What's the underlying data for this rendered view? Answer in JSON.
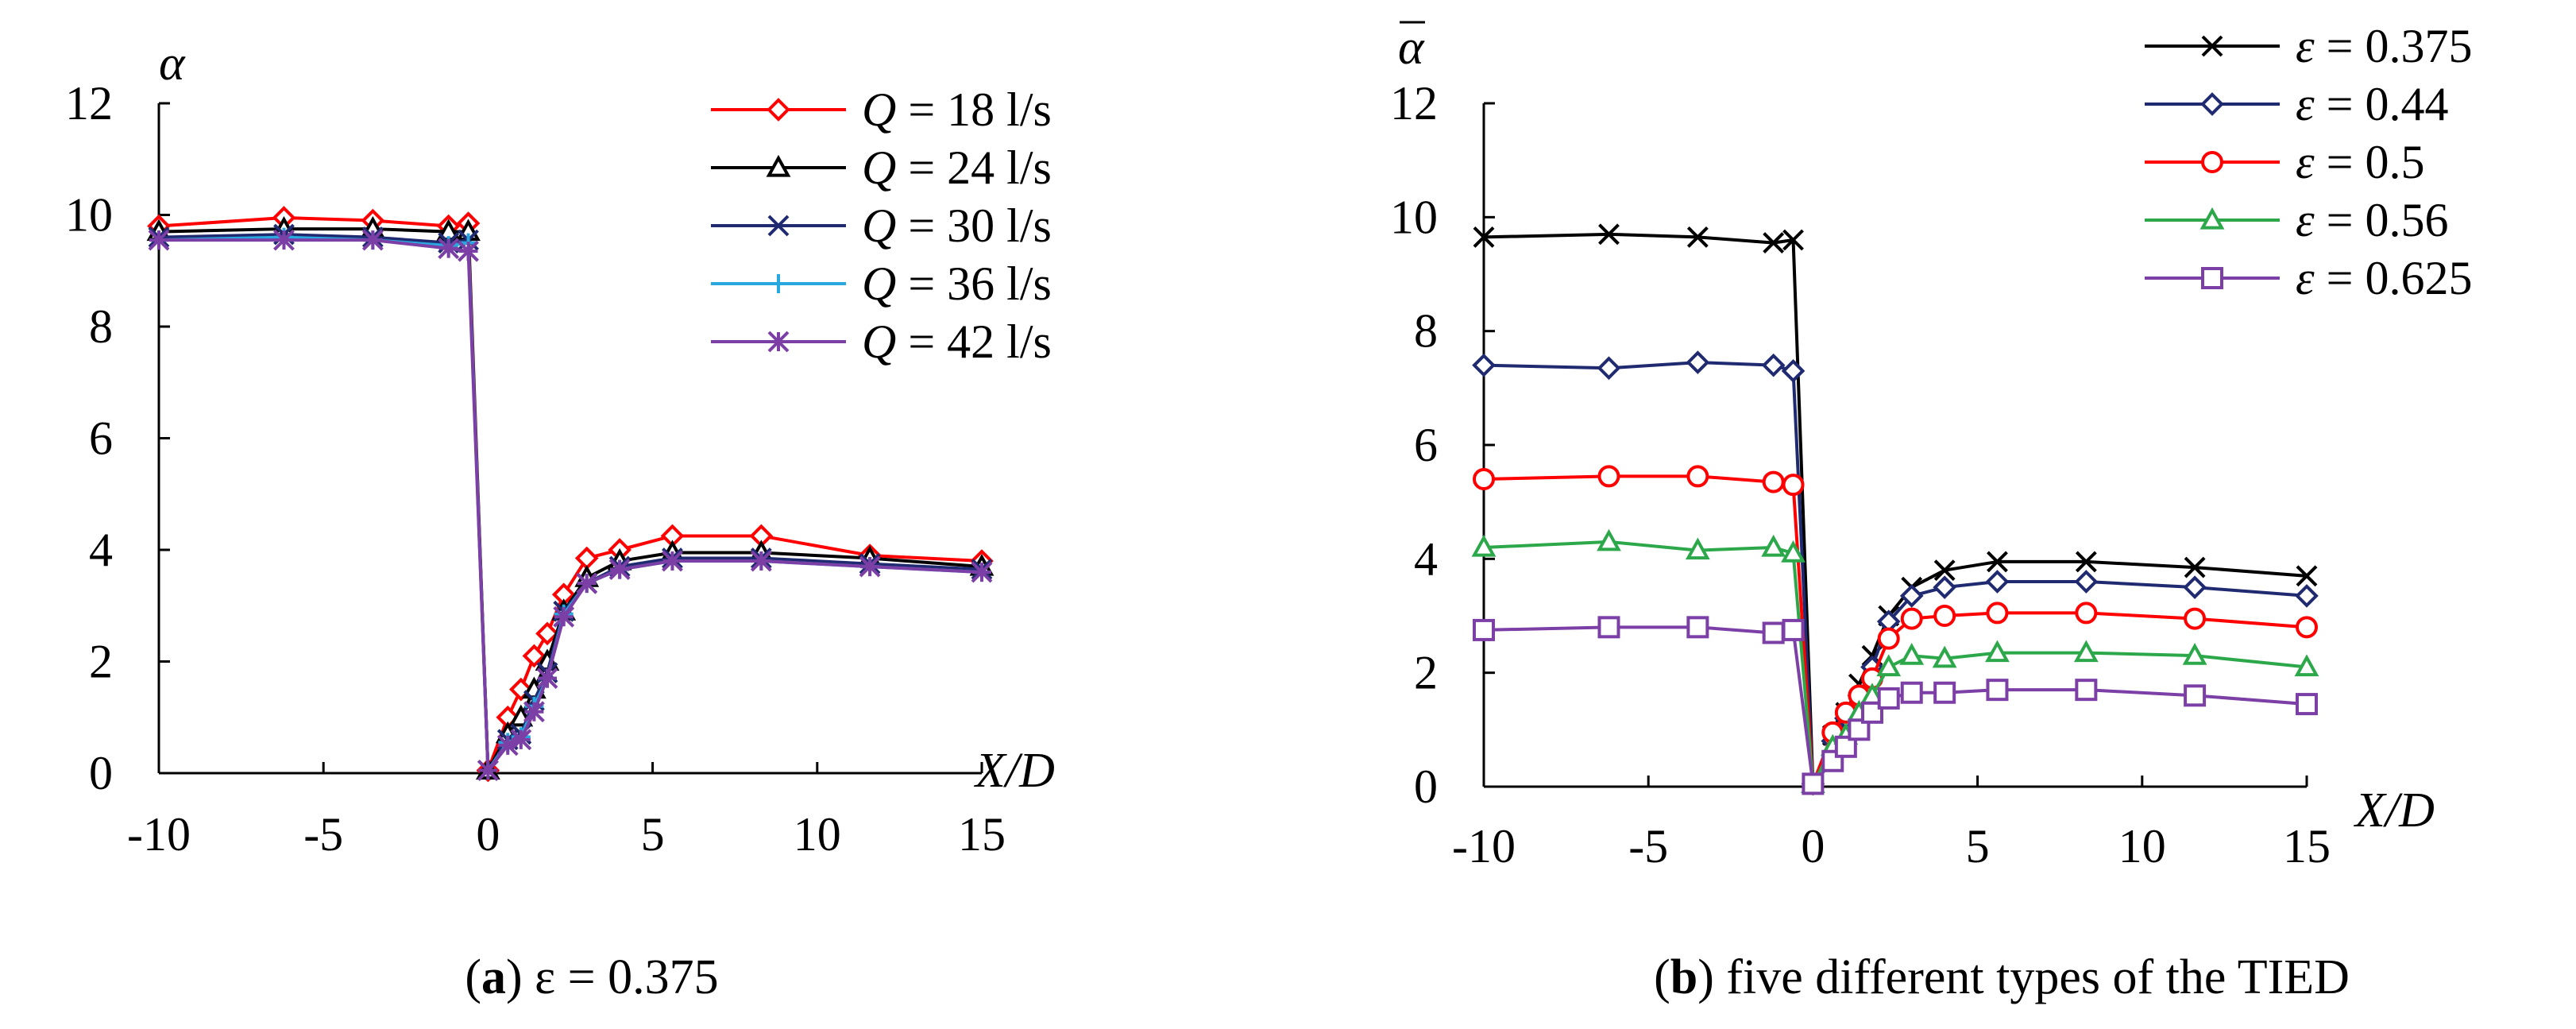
{
  "chart_data": [
    {
      "id": "a",
      "type": "line",
      "ylabel": "α",
      "xlabel": "X/D",
      "xlim": [
        -10,
        15
      ],
      "ylim": [
        0,
        12
      ],
      "xticks": [
        -10,
        -5,
        0,
        5,
        10,
        15
      ],
      "yticks": [
        0,
        2,
        4,
        6,
        8,
        10,
        12
      ],
      "caption": {
        "letter": "a",
        "text": " ε = 0.375"
      },
      "series": [
        {
          "name": "Q = 18 l/s",
          "prefix": "Q",
          "value_text": " = 18 l/s",
          "color": "#ff0000",
          "marker": "diamond",
          "x": [
            -10,
            -6.2,
            -3.5,
            -1.2,
            -0.6,
            0,
            0.6,
            1.0,
            1.4,
            1.8,
            2.3,
            3.0,
            4.0,
            5.6,
            8.3,
            11.6,
            15
          ],
          "y": [
            9.8,
            9.95,
            9.9,
            9.8,
            9.85,
            0.05,
            1.0,
            1.5,
            2.1,
            2.5,
            3.2,
            3.85,
            4.0,
            4.25,
            4.25,
            3.9,
            3.8
          ]
        },
        {
          "name": "Q = 24 l/s",
          "prefix": "Q",
          "value_text": " = 24 l/s",
          "color": "#000000",
          "marker": "triangle",
          "x": [
            -10,
            -6.2,
            -3.5,
            -1.2,
            -0.6,
            0,
            0.6,
            1.0,
            1.4,
            1.8,
            2.3,
            3.0,
            4.0,
            5.6,
            8.3,
            11.6,
            15
          ],
          "y": [
            9.7,
            9.75,
            9.75,
            9.7,
            9.7,
            0.05,
            0.7,
            1.0,
            1.5,
            2.0,
            2.9,
            3.5,
            3.8,
            3.95,
            3.95,
            3.85,
            3.7
          ]
        },
        {
          "name": "Q = 30 l/s",
          "prefix": "Q",
          "value_text": " = 30 l/s",
          "color": "#1f2a70",
          "marker": "x",
          "x": [
            -10,
            -6.2,
            -3.5,
            -1.2,
            -0.6,
            0,
            0.6,
            1.0,
            1.4,
            1.8,
            2.3,
            3.0,
            4.0,
            5.6,
            8.3,
            11.6,
            15
          ],
          "y": [
            9.6,
            9.65,
            9.6,
            9.5,
            9.55,
            0.05,
            0.6,
            0.7,
            1.3,
            1.8,
            2.9,
            3.4,
            3.7,
            3.85,
            3.85,
            3.75,
            3.65
          ]
        },
        {
          "name": "Q = 36 l/s",
          "prefix": "Q",
          "value_text": " = 36 l/s",
          "color": "#29a8e0",
          "marker": "plus",
          "x": [
            -10,
            -6.2,
            -3.5,
            -1.2,
            -0.6,
            0,
            0.6,
            1.0,
            1.4,
            1.8,
            2.3,
            3.0,
            4.0,
            5.6,
            8.3,
            11.6,
            15
          ],
          "y": [
            9.55,
            9.6,
            9.55,
            9.45,
            9.5,
            0.05,
            0.55,
            0.65,
            1.2,
            1.7,
            2.85,
            3.4,
            3.65,
            3.8,
            3.8,
            3.7,
            3.6
          ]
        },
        {
          "name": "Q = 42 l/s",
          "prefix": "Q",
          "value_text": " = 42 l/s",
          "color": "#7b3fa6",
          "marker": "asterisk",
          "x": [
            -10,
            -6.2,
            -3.5,
            -1.2,
            -0.6,
            0,
            0.6,
            1.0,
            1.4,
            1.8,
            2.3,
            3.0,
            4.0,
            5.6,
            8.3,
            11.6,
            15
          ],
          "y": [
            9.55,
            9.55,
            9.55,
            9.4,
            9.35,
            0.05,
            0.5,
            0.6,
            1.1,
            1.7,
            2.8,
            3.4,
            3.65,
            3.8,
            3.8,
            3.7,
            3.6
          ]
        }
      ]
    },
    {
      "id": "b",
      "type": "line",
      "ylabel": "α",
      "xlabel": "X/D",
      "xlim": [
        -10,
        15
      ],
      "ylim": [
        0,
        12
      ],
      "xticks": [
        -10,
        -5,
        0,
        5,
        10,
        15
      ],
      "yticks": [
        0,
        2,
        4,
        6,
        8,
        10,
        12
      ],
      "caption": {
        "letter": "b",
        "text": " five different types of the TIED"
      },
      "series": [
        {
          "name": "ε = 0.375",
          "prefix": "ε",
          "value_text": " = 0.375",
          "color": "#000000",
          "marker": "x",
          "x": [
            -10,
            -6.2,
            -3.5,
            -1.2,
            -0.6,
            0,
            0.6,
            1.0,
            1.4,
            1.8,
            2.3,
            3.0,
            4.0,
            5.6,
            8.3,
            11.6,
            15
          ],
          "y": [
            9.65,
            9.7,
            9.65,
            9.55,
            9.6,
            0.05,
            0.9,
            1.3,
            1.8,
            2.3,
            3.0,
            3.5,
            3.8,
            3.95,
            3.95,
            3.85,
            3.7
          ]
        },
        {
          "name": "ε = 0.44",
          "prefix": "ε",
          "value_text": " = 0.44",
          "color": "#1f2a70",
          "marker": "diamond",
          "x": [
            -10,
            -6.2,
            -3.5,
            -1.2,
            -0.6,
            0,
            0.6,
            1.0,
            1.4,
            1.8,
            2.3,
            3.0,
            4.0,
            5.6,
            8.3,
            11.6,
            15
          ],
          "y": [
            7.4,
            7.35,
            7.45,
            7.4,
            7.3,
            0.05,
            0.8,
            1.2,
            1.6,
            2.1,
            2.9,
            3.35,
            3.5,
            3.6,
            3.6,
            3.5,
            3.35
          ]
        },
        {
          "name": "ε = 0.5",
          "prefix": "ε",
          "value_text": " = 0.5",
          "color": "#ff0000",
          "marker": "circle",
          "x": [
            -10,
            -6.2,
            -3.5,
            -1.2,
            -0.6,
            0,
            0.6,
            1.0,
            1.4,
            1.8,
            2.3,
            3.0,
            4.0,
            5.6,
            8.3,
            11.6,
            15
          ],
          "y": [
            5.4,
            5.45,
            5.45,
            5.35,
            5.3,
            0.05,
            0.95,
            1.3,
            1.6,
            1.9,
            2.6,
            2.95,
            3.0,
            3.05,
            3.05,
            2.95,
            2.8
          ]
        },
        {
          "name": "ε = 0.56",
          "prefix": "ε",
          "value_text": " = 0.56",
          "color": "#2ca84a",
          "marker": "triangle",
          "x": [
            -10,
            -6.2,
            -3.5,
            -1.2,
            -0.6,
            0,
            0.6,
            1.0,
            1.4,
            1.8,
            2.3,
            3.0,
            4.0,
            5.6,
            8.3,
            11.6,
            15
          ],
          "y": [
            4.2,
            4.3,
            4.15,
            4.2,
            4.1,
            0.05,
            0.7,
            0.9,
            1.3,
            1.6,
            2.1,
            2.3,
            2.25,
            2.35,
            2.35,
            2.3,
            2.1
          ]
        },
        {
          "name": "ε = 0.625",
          "prefix": "ε",
          "value_text": " = 0.625",
          "color": "#7b3fa6",
          "marker": "square",
          "x": [
            -10,
            -6.2,
            -3.5,
            -1.2,
            -0.6,
            0,
            0.6,
            1.0,
            1.4,
            1.8,
            2.3,
            3.0,
            4.0,
            5.6,
            8.3,
            11.6,
            15
          ],
          "y": [
            2.75,
            2.8,
            2.8,
            2.7,
            2.75,
            0.05,
            0.45,
            0.7,
            1.0,
            1.3,
            1.55,
            1.65,
            1.65,
            1.7,
            1.7,
            1.6,
            1.45
          ]
        }
      ]
    }
  ]
}
